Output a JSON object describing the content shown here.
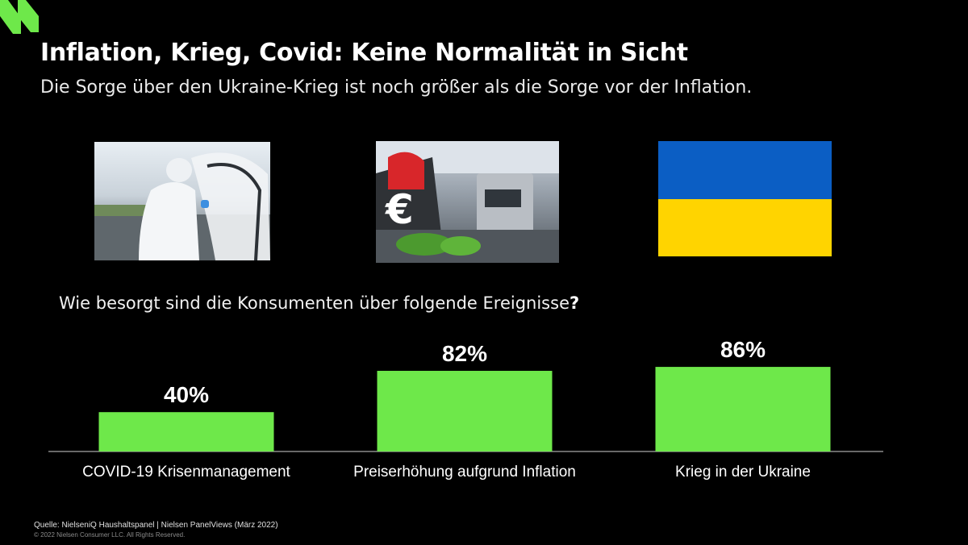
{
  "header": {
    "title": "Inflation, Krieg, Covid: Keine Normalität in Sicht",
    "subtitle": "Die Sorge über den Ukraine-Krieg ist noch größer als die Sorge vor der Inflation."
  },
  "images": [
    {
      "name": "covid-worker-photo"
    },
    {
      "name": "inflation-euro-photo",
      "overlay_text": "€"
    },
    {
      "name": "ukraine-flag",
      "colors": [
        "#0b5ec4",
        "#ffd400"
      ]
    }
  ],
  "question": {
    "text": "Wie besorgt sind die Konsumenten über folgende Ereignisse",
    "mark": "?"
  },
  "chart_data": {
    "type": "bar",
    "categories": [
      "COVID-19 Krisenmanagement",
      "Preiserhöhung aufgrund Inflation",
      "Krieg in der Ukraine"
    ],
    "values": [
      40,
      82,
      86
    ],
    "value_labels": [
      "40%",
      "82%",
      "86%"
    ],
    "unit": "%",
    "ylim": [
      0,
      100
    ],
    "bar_color": "#6ee84a",
    "grid": false,
    "legend": "none"
  },
  "footer": {
    "source": "Quelle: NielseniQ Haushaltspanel | Nielsen PanelViews (März 2022)",
    "copyright": "© 2022 Nielsen Consumer LLC. All Rights Reserved."
  },
  "brand": {
    "accent": "#6ee84a"
  }
}
